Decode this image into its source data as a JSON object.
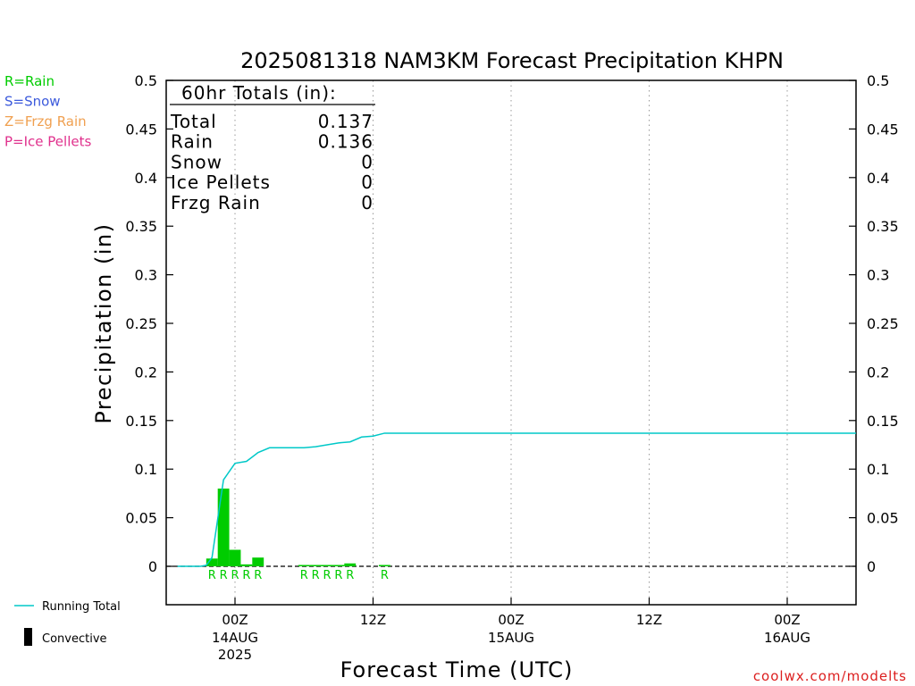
{
  "chart_data": {
    "type": "bar",
    "title": "2025081318 NAM3KM Forecast Precipitation KHPN",
    "xlabel": "Forecast Time (UTC)",
    "ylabel": "Precipitation (in)",
    "ylim": [
      -0.04,
      0.5
    ],
    "xlim_hours": [
      -6,
      56
    ],
    "y_ticks": [
      0,
      0.05,
      0.1,
      0.15,
      0.2,
      0.25,
      0.3,
      0.35,
      0.4,
      0.45,
      0.5
    ],
    "y_tick_labels": [
      "0",
      "0.05",
      "0.1",
      "0.15",
      "0.2",
      "0.25",
      "0.3",
      "0.35",
      "0.4",
      "0.45",
      "0.5"
    ],
    "x_ticks": [
      {
        "hour": 0,
        "label": "00Z",
        "sub1": "14AUG",
        "sub2": "2025"
      },
      {
        "hour": 12,
        "label": "12Z",
        "sub1": "",
        "sub2": ""
      },
      {
        "hour": 24,
        "label": "00Z",
        "sub1": "15AUG",
        "sub2": ""
      },
      {
        "hour": 36,
        "label": "12Z",
        "sub1": "",
        "sub2": ""
      },
      {
        "hour": 48,
        "label": "00Z",
        "sub1": "16AUG",
        "sub2": ""
      }
    ],
    "grid": "vertical-dotted",
    "series": [
      {
        "name": "Convective",
        "kind": "bar",
        "color": "#00cc00",
        "points": [
          {
            "h": -2,
            "v": 0.008
          },
          {
            "h": -1,
            "v": 0.08
          },
          {
            "h": 0,
            "v": 0.017
          },
          {
            "h": 1,
            "v": 0.002
          },
          {
            "h": 2,
            "v": 0.009
          },
          {
            "h": 6,
            "v": 0.001
          },
          {
            "h": 7,
            "v": 0.001
          },
          {
            "h": 8,
            "v": 0.0005
          },
          {
            "h": 9,
            "v": 0.001
          },
          {
            "h": 10,
            "v": 0.003
          },
          {
            "h": 13,
            "v": 0.001
          }
        ]
      },
      {
        "name": "Running Total",
        "kind": "line",
        "color": "#00c8c8",
        "x": [
          -5,
          -3,
          -2.5,
          -2,
          -1,
          0,
          1,
          2,
          3,
          4,
          5,
          6,
          7,
          8,
          9,
          10,
          11,
          12,
          13,
          56
        ],
        "y": [
          0,
          0,
          0.001,
          0.009,
          0.089,
          0.106,
          0.108,
          0.117,
          0.122,
          0.122,
          0.122,
          0.122,
          0.123,
          0.125,
          0.127,
          0.128,
          0.133,
          0.134,
          0.137,
          0.137
        ]
      }
    ],
    "precip_type_markers": {
      "label": "R",
      "color": "#00cc00",
      "hours": [
        -2,
        -1,
        0,
        1,
        2,
        6,
        7,
        8,
        9,
        10,
        13
      ]
    },
    "totals": {
      "heading": "60hr Totals (in):",
      "rows": [
        {
          "label": "Total",
          "value": "0.137"
        },
        {
          "label": "Rain",
          "value": "0.136"
        },
        {
          "label": "Snow",
          "value": "0"
        },
        {
          "label": "Ice Pellets",
          "value": "0"
        },
        {
          "label": "Frzg Rain",
          "value": "0"
        }
      ]
    },
    "type_legend": [
      {
        "text": "R=Rain",
        "color": "#00cc00"
      },
      {
        "text": "S=Snow",
        "color": "#3c5adc"
      },
      {
        "text": "Z=Frzg Rain",
        "color": "#f0a050"
      },
      {
        "text": "P=Ice Pellets",
        "color": "#e0308c"
      }
    ],
    "legend": {
      "running_total_label": "Running Total",
      "convective_label": "Convective",
      "placement": "bottom-left"
    },
    "credit": "coolwx.com/modelts"
  }
}
